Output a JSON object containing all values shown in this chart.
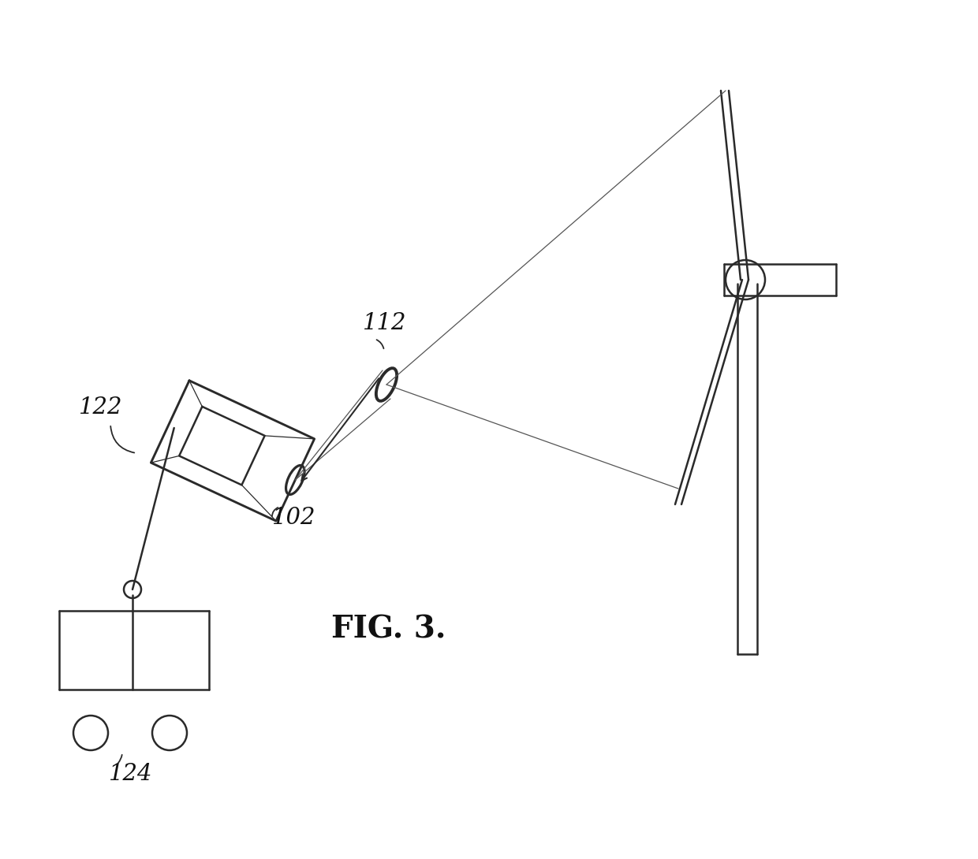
{
  "bg_color": "#ffffff",
  "line_color": "#2a2a2a",
  "fig_label": "FIG. 3.",
  "label_102": "102",
  "label_112": "112",
  "label_122": "122",
  "label_124": "124",
  "lw_main": 1.8,
  "lw_thin": 0.9
}
